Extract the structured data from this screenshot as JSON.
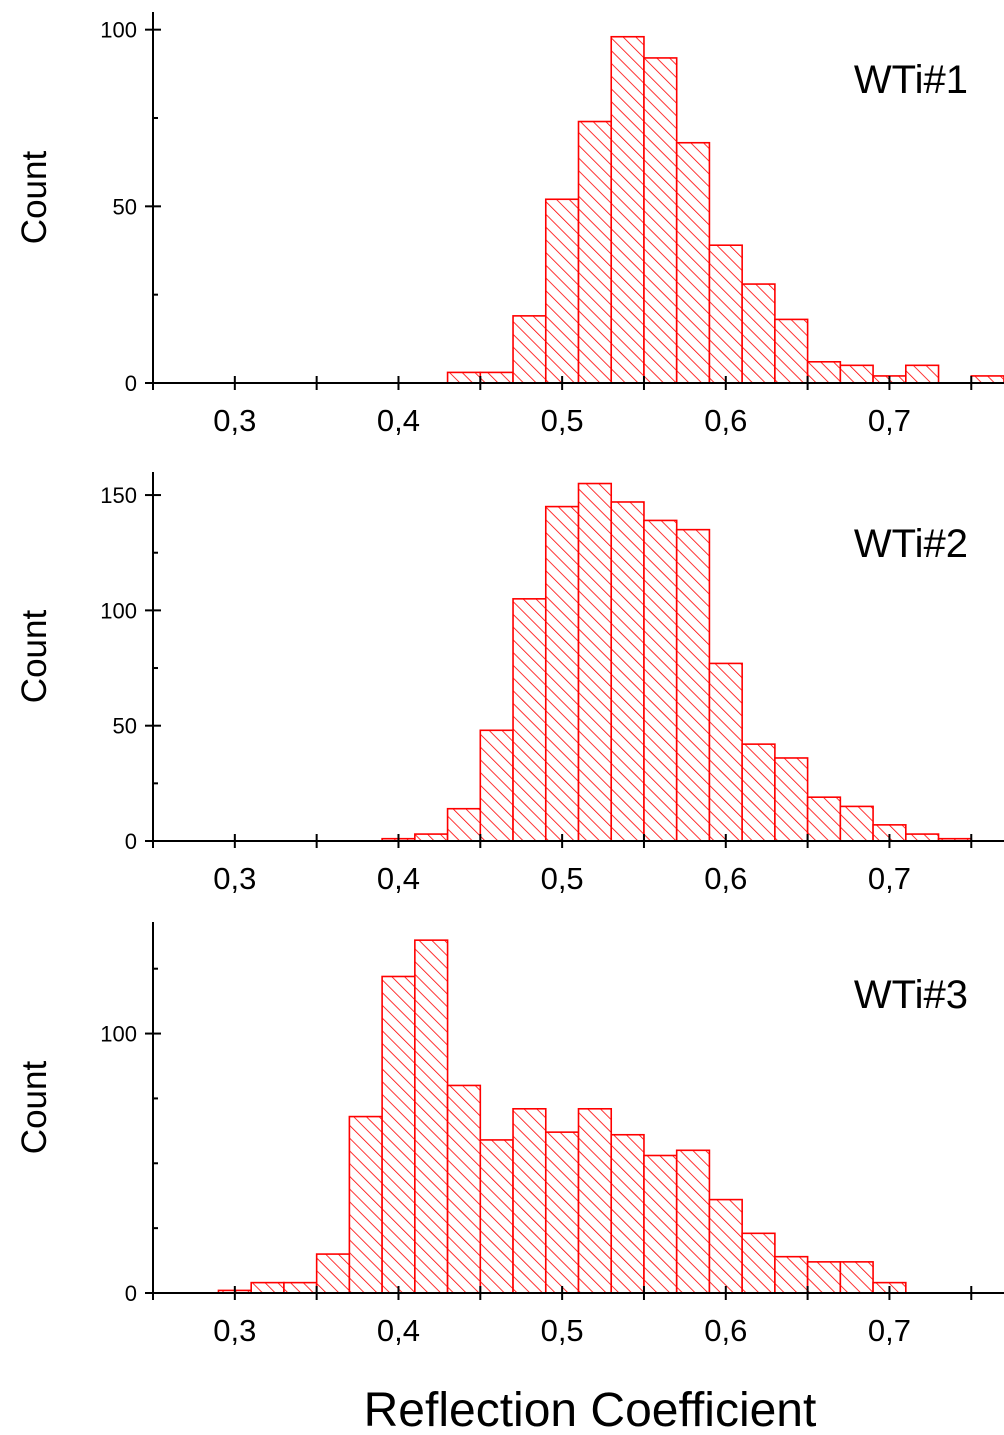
{
  "colors": {
    "bar_stroke": "#ff0000",
    "hatch": "#ff0000",
    "axis": "#000000",
    "background": "#ffffff"
  },
  "xlabel": "Reflection Coefficient",
  "chart_data": [
    {
      "type": "bar",
      "title": "WTi#1",
      "ylabel": "Count",
      "xlabel": "Reflection Coefficient",
      "xlim": [
        0.25,
        0.77
      ],
      "ylim": [
        0,
        105
      ],
      "bin_width": 0.02,
      "x_ticks": [
        "0,3",
        "0,4",
        "0,5",
        "0,6",
        "0,7"
      ],
      "y_ticks": [
        "0",
        "50",
        "100"
      ],
      "bin_starts": [
        0.43,
        0.45,
        0.47,
        0.49,
        0.51,
        0.53,
        0.55,
        0.57,
        0.59,
        0.61,
        0.63,
        0.65,
        0.67,
        0.69,
        0.71,
        0.75
      ],
      "values": [
        3,
        3,
        19,
        52,
        74,
        98,
        92,
        68,
        39,
        28,
        18,
        6,
        5,
        2,
        5,
        2
      ],
      "grid": false,
      "hatch": "diagonal"
    },
    {
      "type": "bar",
      "title": "WTi#2",
      "ylabel": "Count",
      "xlabel": "Reflection Coefficient",
      "xlim": [
        0.25,
        0.77
      ],
      "ylim": [
        0,
        160
      ],
      "bin_width": 0.02,
      "x_ticks": [
        "0,3",
        "0,4",
        "0,5",
        "0,6",
        "0,7"
      ],
      "y_ticks": [
        "0",
        "50",
        "100",
        "150"
      ],
      "bin_starts": [
        0.39,
        0.41,
        0.43,
        0.45,
        0.47,
        0.49,
        0.51,
        0.53,
        0.55,
        0.57,
        0.59,
        0.61,
        0.63,
        0.65,
        0.67,
        0.69,
        0.71,
        0.73
      ],
      "values": [
        1,
        3,
        14,
        48,
        105,
        145,
        155,
        147,
        139,
        135,
        77,
        42,
        36,
        19,
        15,
        7,
        3,
        1
      ],
      "grid": false,
      "hatch": "diagonal"
    },
    {
      "type": "bar",
      "title": "WTi#3",
      "ylabel": "Count",
      "xlabel": "Reflection Coefficient",
      "xlim": [
        0.25,
        0.77
      ],
      "ylim": [
        0,
        143
      ],
      "bin_width": 0.02,
      "x_ticks": [
        "0,3",
        "0,4",
        "0,5",
        "0,6",
        "0,7"
      ],
      "y_ticks": [
        "0",
        "100"
      ],
      "bin_starts": [
        0.29,
        0.31,
        0.33,
        0.35,
        0.37,
        0.39,
        0.41,
        0.43,
        0.45,
        0.47,
        0.49,
        0.51,
        0.53,
        0.55,
        0.57,
        0.59,
        0.61,
        0.63,
        0.65,
        0.67,
        0.69
      ],
      "values": [
        1,
        4,
        4,
        15,
        68,
        122,
        136,
        80,
        59,
        71,
        62,
        71,
        61,
        53,
        55,
        36,
        23,
        14,
        12,
        12,
        4
      ],
      "grid": false,
      "hatch": "diagonal"
    }
  ]
}
